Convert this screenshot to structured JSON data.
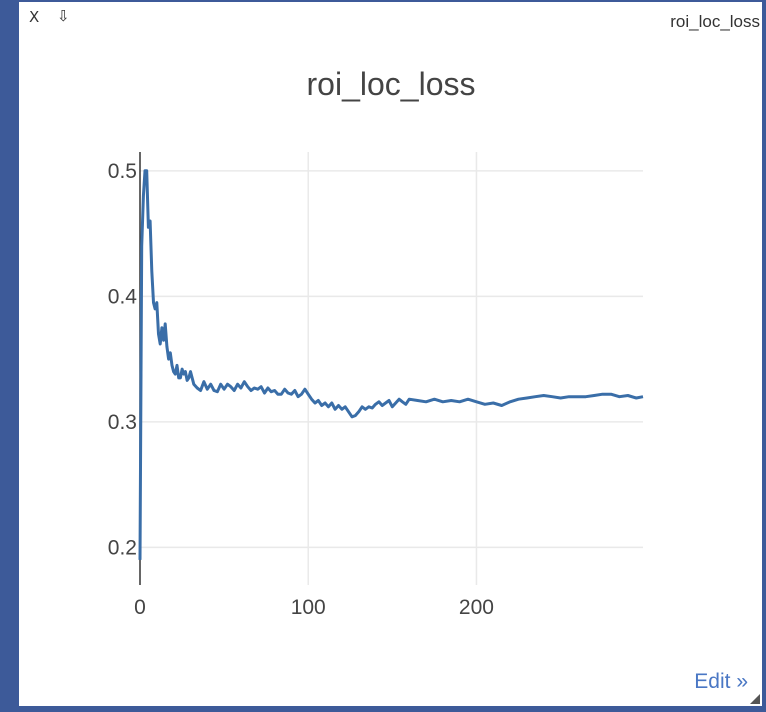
{
  "pane": {
    "title": "roi_loc_loss",
    "close_label": "X",
    "download_label": "⇩",
    "edit_label": "Edit »"
  },
  "colors": {
    "line": "#3a6ea8",
    "grid": "#e9e9e9",
    "background": "#3d5a99"
  },
  "chart_data": {
    "type": "line",
    "title": "roi_loc_loss",
    "xlabel": "",
    "ylabel": "",
    "xlim": [
      0,
      299
    ],
    "ylim": [
      0.17,
      0.515
    ],
    "xticks": [
      0,
      100,
      200
    ],
    "yticks": [
      0.2,
      0.3,
      0.4,
      0.5
    ],
    "grid": true,
    "series": [
      {
        "x": [
          0,
          1,
          2,
          3,
          4,
          5,
          6,
          7,
          8,
          9,
          10,
          11,
          12,
          13,
          14,
          15,
          16,
          17,
          18,
          19,
          20,
          21,
          22,
          23,
          24,
          25,
          26,
          27,
          28,
          29,
          30,
          32,
          34,
          36,
          38,
          40,
          42,
          44,
          46,
          48,
          50,
          52,
          54,
          56,
          58,
          60,
          62,
          64,
          66,
          68,
          70,
          72,
          74,
          76,
          78,
          80,
          82,
          84,
          86,
          88,
          90,
          92,
          94,
          96,
          98,
          100,
          102,
          104,
          106,
          108,
          110,
          112,
          114,
          116,
          118,
          120,
          122,
          124,
          126,
          128,
          130,
          132,
          134,
          136,
          138,
          140,
          142,
          144,
          146,
          148,
          150,
          152,
          154,
          156,
          158,
          160,
          165,
          170,
          175,
          180,
          185,
          190,
          195,
          200,
          205,
          210,
          215,
          220,
          225,
          230,
          235,
          240,
          245,
          250,
          255,
          260,
          265,
          270,
          275,
          280,
          285,
          290,
          295,
          299
        ],
        "y": [
          0.19,
          0.44,
          0.48,
          0.5,
          0.5,
          0.455,
          0.46,
          0.42,
          0.395,
          0.39,
          0.395,
          0.37,
          0.362,
          0.375,
          0.365,
          0.378,
          0.36,
          0.35,
          0.355,
          0.345,
          0.34,
          0.338,
          0.345,
          0.335,
          0.335,
          0.342,
          0.338,
          0.34,
          0.333,
          0.335,
          0.34,
          0.33,
          0.327,
          0.325,
          0.332,
          0.326,
          0.33,
          0.325,
          0.324,
          0.33,
          0.326,
          0.33,
          0.328,
          0.325,
          0.33,
          0.327,
          0.332,
          0.328,
          0.325,
          0.327,
          0.326,
          0.328,
          0.323,
          0.327,
          0.324,
          0.325,
          0.322,
          0.322,
          0.326,
          0.323,
          0.322,
          0.325,
          0.32,
          0.322,
          0.326,
          0.322,
          0.318,
          0.315,
          0.317,
          0.313,
          0.315,
          0.312,
          0.315,
          0.31,
          0.313,
          0.31,
          0.312,
          0.308,
          0.304,
          0.305,
          0.308,
          0.312,
          0.31,
          0.312,
          0.311,
          0.314,
          0.316,
          0.313,
          0.315,
          0.317,
          0.312,
          0.315,
          0.318,
          0.316,
          0.314,
          0.318,
          0.317,
          0.316,
          0.318,
          0.316,
          0.317,
          0.316,
          0.318,
          0.316,
          0.314,
          0.315,
          0.313,
          0.316,
          0.318,
          0.319,
          0.32,
          0.321,
          0.32,
          0.319,
          0.32,
          0.32,
          0.32,
          0.321,
          0.322,
          0.322,
          0.32,
          0.321,
          0.319,
          0.32
        ]
      }
    ]
  }
}
